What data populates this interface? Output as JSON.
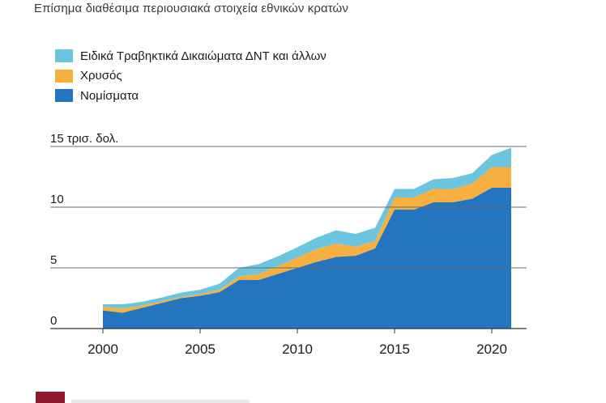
{
  "subtitle": "Επίσημα διαθέσιμα περιουσιακά στοιχεία εθνικών κρατών",
  "legend": [
    {
      "label": "Ειδικά Τραβηκτικά Δικαιώματα ΔΝΤ και άλλων",
      "color": "#6cc5de"
    },
    {
      "label": "Χρυσός",
      "color": "#f7b03f"
    },
    {
      "label": "Νομίσματα",
      "color": "#2475c0"
    }
  ],
  "chart_data": {
    "type": "area",
    "stacked": true,
    "x": [
      2000,
      2001,
      2002,
      2003,
      2004,
      2005,
      2006,
      2007,
      2008,
      2009,
      2010,
      2011,
      2012,
      2013,
      2014,
      2015,
      2016,
      2017,
      2018,
      2019,
      2020,
      2021
    ],
    "series": [
      {
        "name": "Νομίσματα",
        "color": "#2475c0",
        "values": [
          1.5,
          1.3,
          1.7,
          2.1,
          2.5,
          2.7,
          3.0,
          4.0,
          4.0,
          4.5,
          5.0,
          5.5,
          5.9,
          6.0,
          6.6,
          9.8,
          9.8,
          10.4,
          10.4,
          10.7,
          11.6,
          11.6
        ]
      },
      {
        "name": "Χρυσός",
        "color": "#f7b03f",
        "values": [
          0.3,
          0.35,
          0.2,
          0.15,
          0.1,
          0.15,
          0.2,
          0.3,
          0.5,
          0.65,
          0.85,
          1.05,
          1.1,
          0.75,
          0.6,
          1.0,
          1.0,
          1.1,
          1.1,
          1.25,
          1.7,
          1.7
        ]
      },
      {
        "name": "Ειδικά Τραβηκτικά Δικαιώματα ΔΝΤ και άλλων",
        "color": "#6cc5de",
        "values": [
          0.2,
          0.35,
          0.3,
          0.3,
          0.35,
          0.35,
          0.5,
          0.7,
          0.8,
          0.8,
          0.85,
          0.95,
          1.1,
          1.05,
          1.1,
          0.7,
          0.7,
          0.8,
          0.9,
          0.85,
          1.0,
          1.6
        ]
      }
    ],
    "yticks": [
      "0",
      "5",
      "10",
      "15 τρισ. δολ."
    ],
    "ytick_values": [
      0,
      5,
      10,
      15
    ],
    "xticks": [
      "2000",
      "2005",
      "2010",
      "2015",
      "2020"
    ],
    "xtick_values": [
      2000,
      2005,
      2010,
      2015,
      2020
    ],
    "xlim": [
      2000,
      2021
    ],
    "ylim": [
      0,
      15
    ],
    "grid": "horizontal",
    "title": "",
    "xlabel": "",
    "ylabel": ""
  }
}
